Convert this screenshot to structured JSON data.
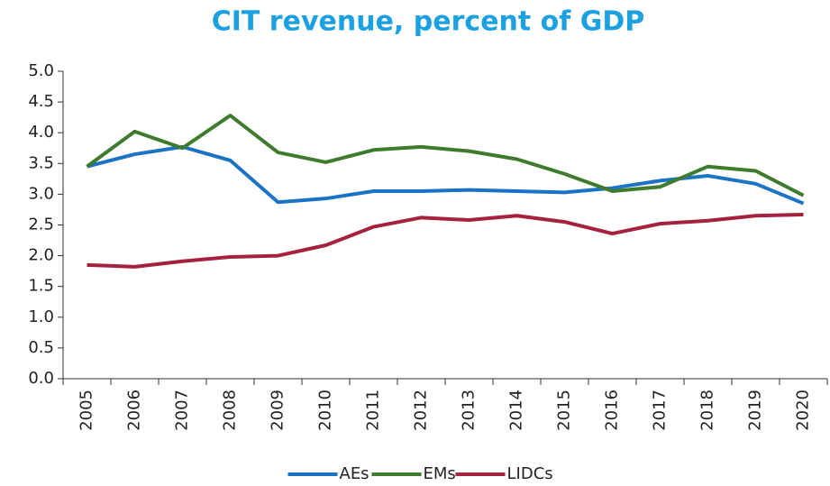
{
  "chart_data": {
    "type": "line",
    "title": "CIT revenue, percent of GDP",
    "categories": [
      "2005",
      "2006",
      "2007",
      "2008",
      "2009",
      "2010",
      "2011",
      "2012",
      "2013",
      "2014",
      "2015",
      "2016",
      "2017",
      "2018",
      "2019",
      "2020"
    ],
    "series": [
      {
        "name": "AEs",
        "color": "#1a73c5",
        "values": [
          3.45,
          3.65,
          3.77,
          3.55,
          2.87,
          2.93,
          3.05,
          3.05,
          3.07,
          3.05,
          3.03,
          3.1,
          3.22,
          3.3,
          3.17,
          2.85
        ]
      },
      {
        "name": "EMs",
        "color": "#3e7b2c",
        "values": [
          3.45,
          4.02,
          3.75,
          4.28,
          3.68,
          3.52,
          3.72,
          3.77,
          3.7,
          3.57,
          3.33,
          3.05,
          3.12,
          3.45,
          3.38,
          2.98
        ]
      },
      {
        "name": "LIDCs",
        "color": "#a6213b",
        "values": [
          1.85,
          1.82,
          1.91,
          1.98,
          2.0,
          2.17,
          2.47,
          2.62,
          2.58,
          2.65,
          2.55,
          2.36,
          2.52,
          2.57,
          2.65,
          2.67
        ]
      }
    ],
    "ylim": [
      0,
      5
    ],
    "yticks": [
      {
        "value": 0,
        "label": "0.0"
      },
      0.5,
      {
        "value": 1,
        "label": "1.0"
      },
      1.5,
      {
        "value": 2,
        "label": "2.0"
      },
      2.5,
      {
        "value": 3,
        "label": "3.0"
      },
      3.5,
      {
        "value": 4,
        "label": "4.0"
      },
      4.5,
      {
        "value": 5,
        "label": "5.0"
      }
    ],
    "grid": false,
    "legend": "bottom"
  }
}
